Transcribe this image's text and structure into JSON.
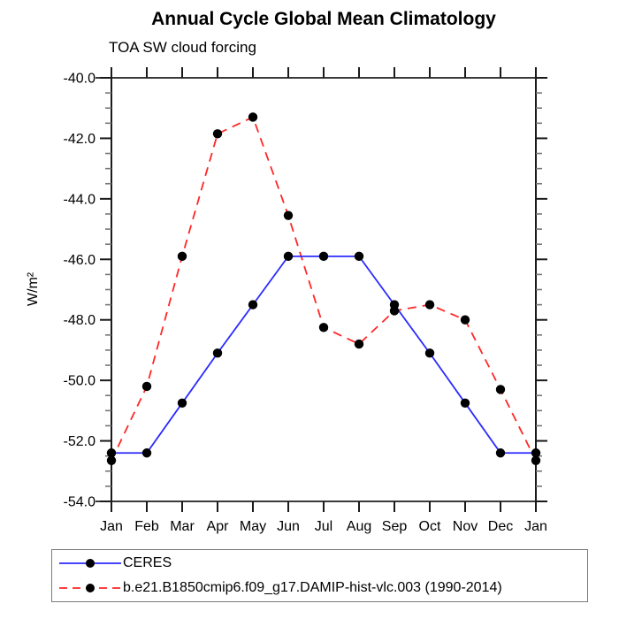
{
  "chart_data": {
    "type": "line",
    "title": "Annual Cycle Global Mean Climatology",
    "subtitle": "TOA SW cloud forcing",
    "ylabel": "W/m²",
    "categories": [
      "Jan",
      "Feb",
      "Mar",
      "Apr",
      "May",
      "Jun",
      "Jul",
      "Aug",
      "Sep",
      "Oct",
      "Nov",
      "Dec",
      "Jan"
    ],
    "series": [
      {
        "name": "CERES",
        "color": "#2a2aff",
        "line_style": "solid",
        "marker": "filled-circle",
        "marker_color": "#000000",
        "values": [
          -52.4,
          -52.4,
          -50.75,
          -49.1,
          -47.5,
          -45.9,
          -45.9,
          -45.9,
          -47.5,
          -49.1,
          -50.75,
          -52.4,
          -52.4
        ]
      },
      {
        "name": "b.e21.B1850cmip6.f09_g17.DAMIP-hist-vlc.003 (1990-2014)",
        "color": "#ff2626",
        "line_style": "dashed",
        "marker": "filled-circle",
        "marker_color": "#000000",
        "values": [
          -52.65,
          -50.2,
          -45.9,
          -41.85,
          -41.3,
          -44.55,
          -48.25,
          -48.8,
          -47.7,
          -47.5,
          -48.0,
          -50.3,
          -52.65
        ]
      }
    ],
    "ylim": [
      -54,
      -40
    ],
    "ytick_major_step": 2,
    "ytick_minor_step": 0.5,
    "ytick_labels": [
      "-40.0",
      "-42.0",
      "-44.0",
      "-46.0",
      "-48.0",
      "-50.0",
      "-52.0",
      "-54.0"
    ],
    "grid": false,
    "legend_position": "bottom-left-box"
  },
  "legend": {
    "items": [
      {
        "label": "CERES"
      },
      {
        "label": "b.e21.B1850cmip6.f09_g17.DAMIP-hist-vlc.003 (1990-2014)"
      }
    ]
  }
}
